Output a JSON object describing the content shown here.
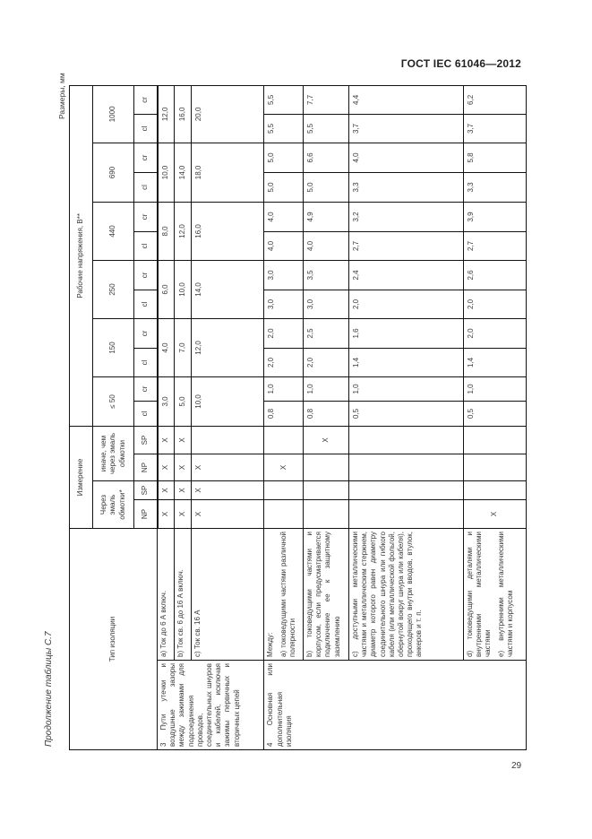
{
  "page": {
    "standard": "ГОСТ IEC 61046—2012",
    "dimensions_note": "Размеры, мм",
    "continuation": "Продолжение таблицы С.7",
    "page_number": "29"
  },
  "table": {
    "header": {
      "type_label": "Тип изоляции",
      "measurement_label": "Измерение",
      "voltage_label": "Рабочие напряжения, В**",
      "through_enamel_label": "Через эмаль обмотки*",
      "other_than_enamel_label": "иначе, чем через эмаль обмотки",
      "sub_cols": [
        "NP",
        "SP",
        "NP",
        "SP"
      ],
      "voltages": [
        "≤ 50",
        "150",
        "250",
        "440",
        "690",
        "1000"
      ],
      "cl": "cl",
      "cr": "cr"
    },
    "groups": [
      {
        "category": "3 Пути утечки и воздушные зазоры между зажимами для подсоединения проводов, соединительных шнуров и кабелей, исключая зажимы первичных и вторичных цепей",
        "rows": [
          {
            "desc": [
              "a) Ток до 6 А включ."
            ],
            "marks": [
              "X",
              "X",
              "X",
              "X"
            ],
            "merged": [
              "3,0",
              "4,0",
              "6,0",
              "8,0",
              "10,0",
              "12,0"
            ]
          },
          {
            "desc": [
              "b) Ток св. 6 до 16 А включ."
            ],
            "marks": [
              "X",
              "X",
              "X",
              "X"
            ],
            "merged": [
              "5,0",
              "7,0",
              "10,0",
              "12,0",
              "14,0",
              "16,0"
            ]
          },
          {
            "desc": [
              "c) Ток св. 16 А"
            ],
            "marks": [
              "X",
              "X",
              "X",
              ""
            ],
            "merged": [
              "10,0",
              "12,0",
              "14,0",
              "16,0",
              "18,0",
              "20,0"
            ]
          }
        ]
      },
      {
        "category": "4 Основная или дополнительная изоляция",
        "rows": [
          {
            "desc": [
              "Между:",
              "a) токоведущими частями различной полярности"
            ],
            "marks": [
              "",
              "",
              "X",
              ""
            ],
            "values": [
              "0,8",
              "1,0",
              "2,0",
              "2,0",
              "3,0",
              "3,0",
              "4,0",
              "4,0",
              "5,0",
              "5,0",
              "5,5",
              "5,5"
            ]
          },
          {
            "desc": [
              "b) токоведущими частями и корпусом, если предусматривается подключение ее к защитному заземлению"
            ],
            "marks": [
              "",
              "",
              "",
              "X"
            ],
            "values": [
              "0,8",
              "1,0",
              "2,0",
              "2,5",
              "3,0",
              "3,5",
              "4,0",
              "4,9",
              "5,0",
              "6,6",
              "5,5",
              "7,7"
            ]
          },
          {
            "desc": [
              "c) доступными металлическими частями и металлическим стержнем, диаметр которого равен диаметру соединительного шнура или гибкого кабеля (или металлической фольгой, обернутой вокруг шнура или кабеля), проходящего внутри вводов, втулок, анкеров и т. п."
            ],
            "marks": [
              "",
              "",
              "",
              ""
            ],
            "values": [
              "0,5",
              "1,0",
              "1,4",
              "1,6",
              "2,0",
              "2,4",
              "2,7",
              "3,2",
              "3,3",
              "4,0",
              "3,7",
              "4,4"
            ]
          },
          {
            "desc": [
              "d) токоведущими деталями и внутренними металлическими частями",
              "e) внутренними металлическими частями и корпусом"
            ],
            "marks": [
              "X",
              "",
              "",
              ""
            ],
            "values": [
              "0,5",
              "1,0",
              "1,4",
              "2,0",
              "2,0",
              "2,6",
              "2,7",
              "3,9",
              "3,3",
              "5,8",
              "3,7",
              "6,2"
            ]
          }
        ]
      }
    ]
  }
}
